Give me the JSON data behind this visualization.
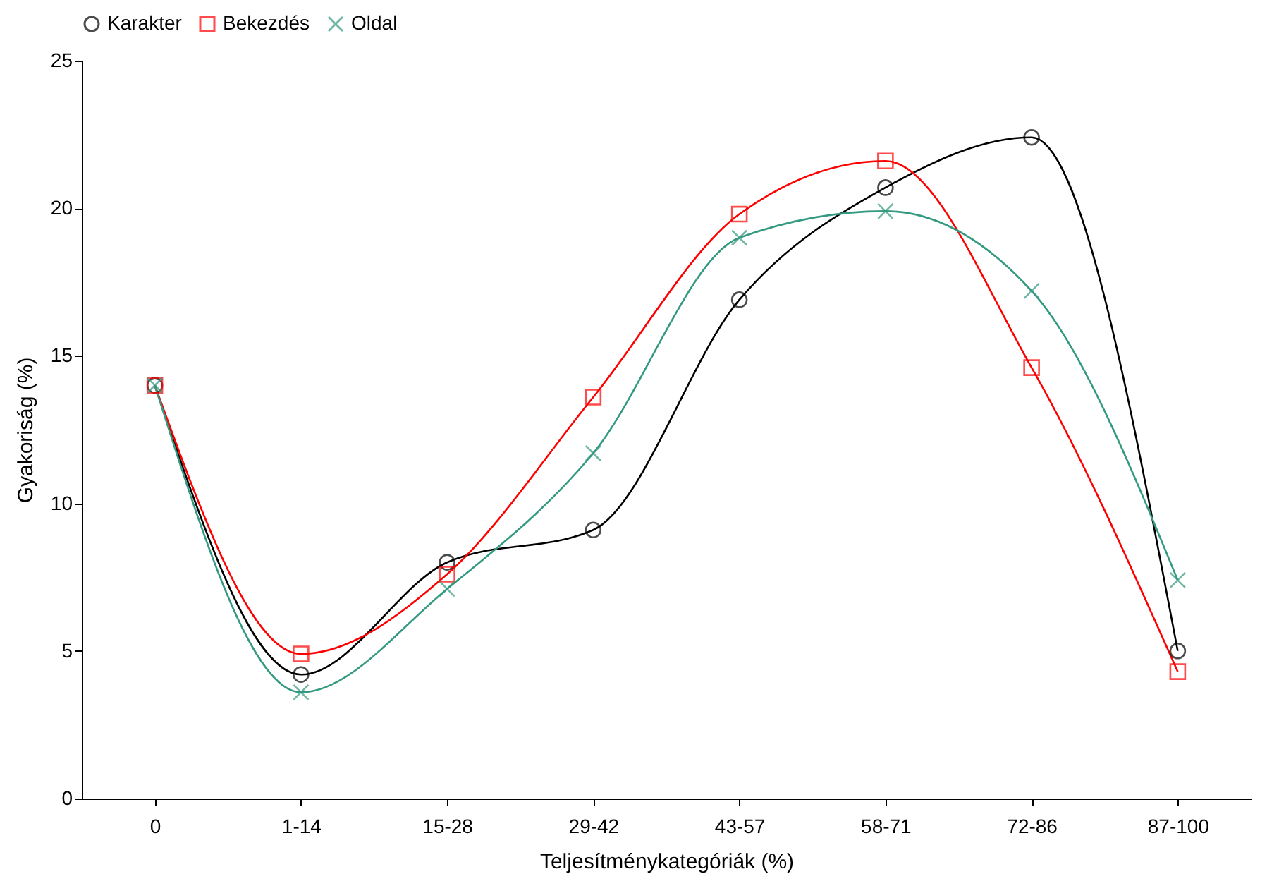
{
  "chart_data": {
    "type": "line",
    "xlabel": "Teljesítménykategóriák (%)",
    "ylabel": "Gyakoriság (%)",
    "categories": [
      "0",
      "1-14",
      "15-28",
      "29-42",
      "43-57",
      "58-71",
      "72-86",
      "87-100"
    ],
    "series": [
      {
        "name": "Karakter",
        "color": "#000000",
        "marker": "circle",
        "values": [
          14.0,
          4.2,
          8.0,
          9.1,
          16.9,
          20.7,
          22.4,
          5.0
        ]
      },
      {
        "name": "Bekezdés",
        "color": "#ff0000",
        "marker": "square",
        "values": [
          14.0,
          4.9,
          7.6,
          13.6,
          19.8,
          21.6,
          14.6,
          4.3
        ]
      },
      {
        "name": "Oldal",
        "color": "#339980",
        "marker": "cross",
        "values": [
          14.0,
          3.6,
          7.1,
          11.7,
          19.0,
          19.9,
          17.2,
          7.4
        ]
      }
    ],
    "ylim": [
      0,
      25
    ],
    "yticks": [
      0,
      5,
      10,
      15,
      20,
      25
    ],
    "grid": false,
    "legend": "top",
    "line_style": "solid"
  }
}
